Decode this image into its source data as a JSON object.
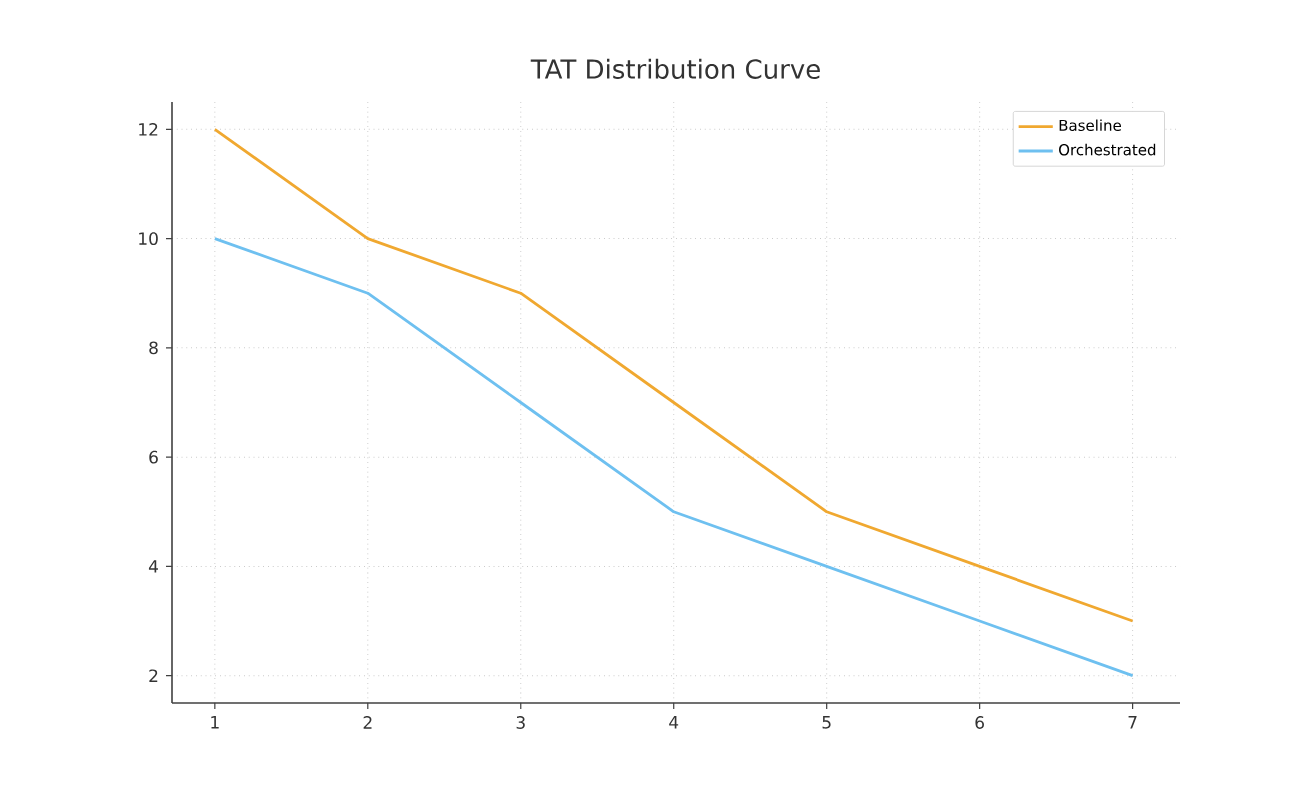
{
  "chart_data": {
    "type": "line",
    "title": "TAT Distribution Curve",
    "x": [
      1,
      2,
      3,
      4,
      5,
      6,
      7
    ],
    "series": [
      {
        "name": "Baseline",
        "color": "#f0a830",
        "values": [
          12,
          10,
          9,
          7,
          5,
          4,
          3
        ]
      },
      {
        "name": "Orchestrated",
        "color": "#6ec0f0",
        "values": [
          10,
          9,
          7,
          5,
          4,
          3,
          2
        ]
      }
    ],
    "xlim": [
      0.72,
      7.31
    ],
    "ylim": [
      1.5,
      12.5
    ],
    "xticks": [
      1,
      2,
      3,
      4,
      5,
      6,
      7
    ],
    "yticks": [
      2,
      4,
      6,
      8,
      10,
      12
    ],
    "grid": true,
    "legend": "top right",
    "marker": "none",
    "line_style": "solid"
  }
}
